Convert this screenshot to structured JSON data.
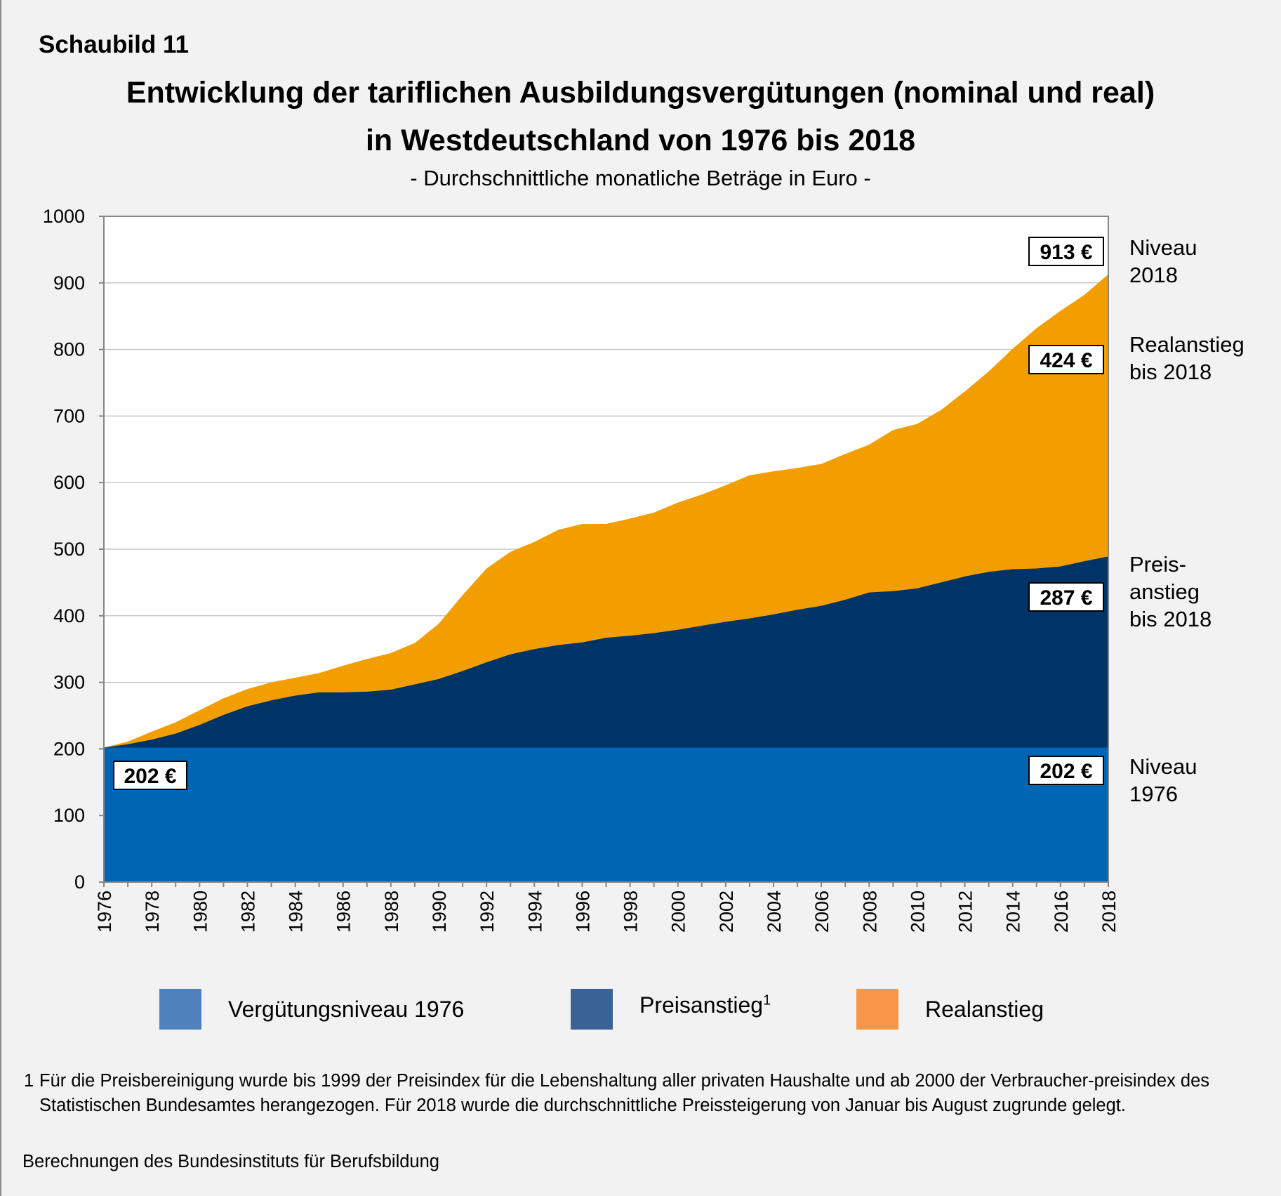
{
  "header": {
    "label": "Schaubild 11",
    "title_line1": "Entwicklung der tariflichen Ausbildungsvergütungen (nominal und real)",
    "title_line2": "in Westdeutschland von 1976 bis 2018",
    "subtitle": "- Durchschnittliche monatliche Beträge in Euro -"
  },
  "chart_data": {
    "type": "area",
    "title": "Entwicklung der tariflichen Ausbildungsvergütungen (nominal und real) in Westdeutschland von 1976 bis 2018",
    "ylim": [
      0,
      1000
    ],
    "yticks": [
      0,
      100,
      200,
      300,
      400,
      500,
      600,
      700,
      800,
      900,
      1000
    ],
    "x": [
      1976,
      1977,
      1978,
      1979,
      1980,
      1981,
      1982,
      1983,
      1984,
      1985,
      1986,
      1987,
      1988,
      1989,
      1990,
      1991,
      1992,
      1993,
      1994,
      1995,
      1996,
      1997,
      1998,
      1999,
      2000,
      2001,
      2002,
      2003,
      2004,
      2005,
      2006,
      2007,
      2008,
      2009,
      2010,
      2011,
      2012,
      2013,
      2014,
      2015,
      2016,
      2017,
      2018
    ],
    "xticks": [
      "1976",
      "1978",
      "1980",
      "1982",
      "1984",
      "1986",
      "1988",
      "1990",
      "1992",
      "1994",
      "1996",
      "1998",
      "2000",
      "2002",
      "2004",
      "2006",
      "2008",
      "2010",
      "2012",
      "2014",
      "2016",
      "2018"
    ],
    "grid": true,
    "stacked_top": true,
    "series": [
      {
        "name": "Vergütungsniveau 1976",
        "color": "#0066b3",
        "values": [
          202,
          202,
          202,
          202,
          202,
          202,
          202,
          202,
          202,
          202,
          202,
          202,
          202,
          202,
          202,
          202,
          202,
          202,
          202,
          202,
          202,
          202,
          202,
          202,
          202,
          202,
          202,
          202,
          202,
          202,
          202,
          202,
          202,
          202,
          202,
          202,
          202,
          202,
          202,
          202,
          202,
          202,
          202
        ]
      },
      {
        "name": "Preisanstieg",
        "color": "#003366",
        "values": [
          202,
          207,
          214,
          223,
          236,
          251,
          264,
          273,
          280,
          285,
          285,
          286,
          289,
          297,
          305,
          317,
          330,
          342,
          350,
          356,
          360,
          367,
          370,
          374,
          379,
          385,
          391,
          396,
          402,
          409,
          415,
          424,
          435,
          437,
          441,
          450,
          459,
          466,
          470,
          471,
          474,
          482,
          489
        ]
      },
      {
        "name": "Realanstieg",
        "color": "#f29e00",
        "values": [
          202,
          211,
          226,
          240,
          258,
          276,
          290,
          300,
          307,
          314,
          325,
          335,
          344,
          359,
          388,
          431,
          471,
          496,
          511,
          529,
          538,
          538,
          546,
          555,
          570,
          582,
          596,
          611,
          617,
          622,
          628,
          643,
          657,
          679,
          688,
          709,
          737,
          767,
          801,
          832,
          858,
          882,
          913
        ]
      }
    ],
    "legend": [
      {
        "label": "Vergütungsniveau 1976",
        "color": "#4f81bd"
      },
      {
        "label": "Preisanstieg",
        "superscript": "1",
        "color": "#3a6296"
      },
      {
        "label": "Realanstieg",
        "color": "#f79646"
      }
    ],
    "value_boxes": {
      "base_left": "202 €",
      "base_right": "202 €",
      "price_rise": "287 €",
      "real_rise": "424 €",
      "level_2018": "913 €"
    },
    "right_labels": {
      "level_2018": [
        "Niveau",
        "2018"
      ],
      "real_rise": [
        "Realanstieg",
        "bis 2018"
      ],
      "price_rise": [
        "Preis-",
        "anstieg",
        "bis 2018"
      ],
      "level_1976": [
        "Niveau",
        "1976"
      ]
    }
  },
  "footnote": {
    "number": "1",
    "text": "Für die Preisbereinigung wurde bis 1999 der Preisindex für die Lebenshaltung aller privaten Haushalte und ab 2000 der Verbraucher-preisindex des Statistischen Bundesamtes herangezogen. Für 2018 wurde die durchschnittliche Preissteigerung von Januar bis August zugrunde gelegt."
  },
  "source": "Berechnungen des Bundesinstituts für Berufsbildung"
}
